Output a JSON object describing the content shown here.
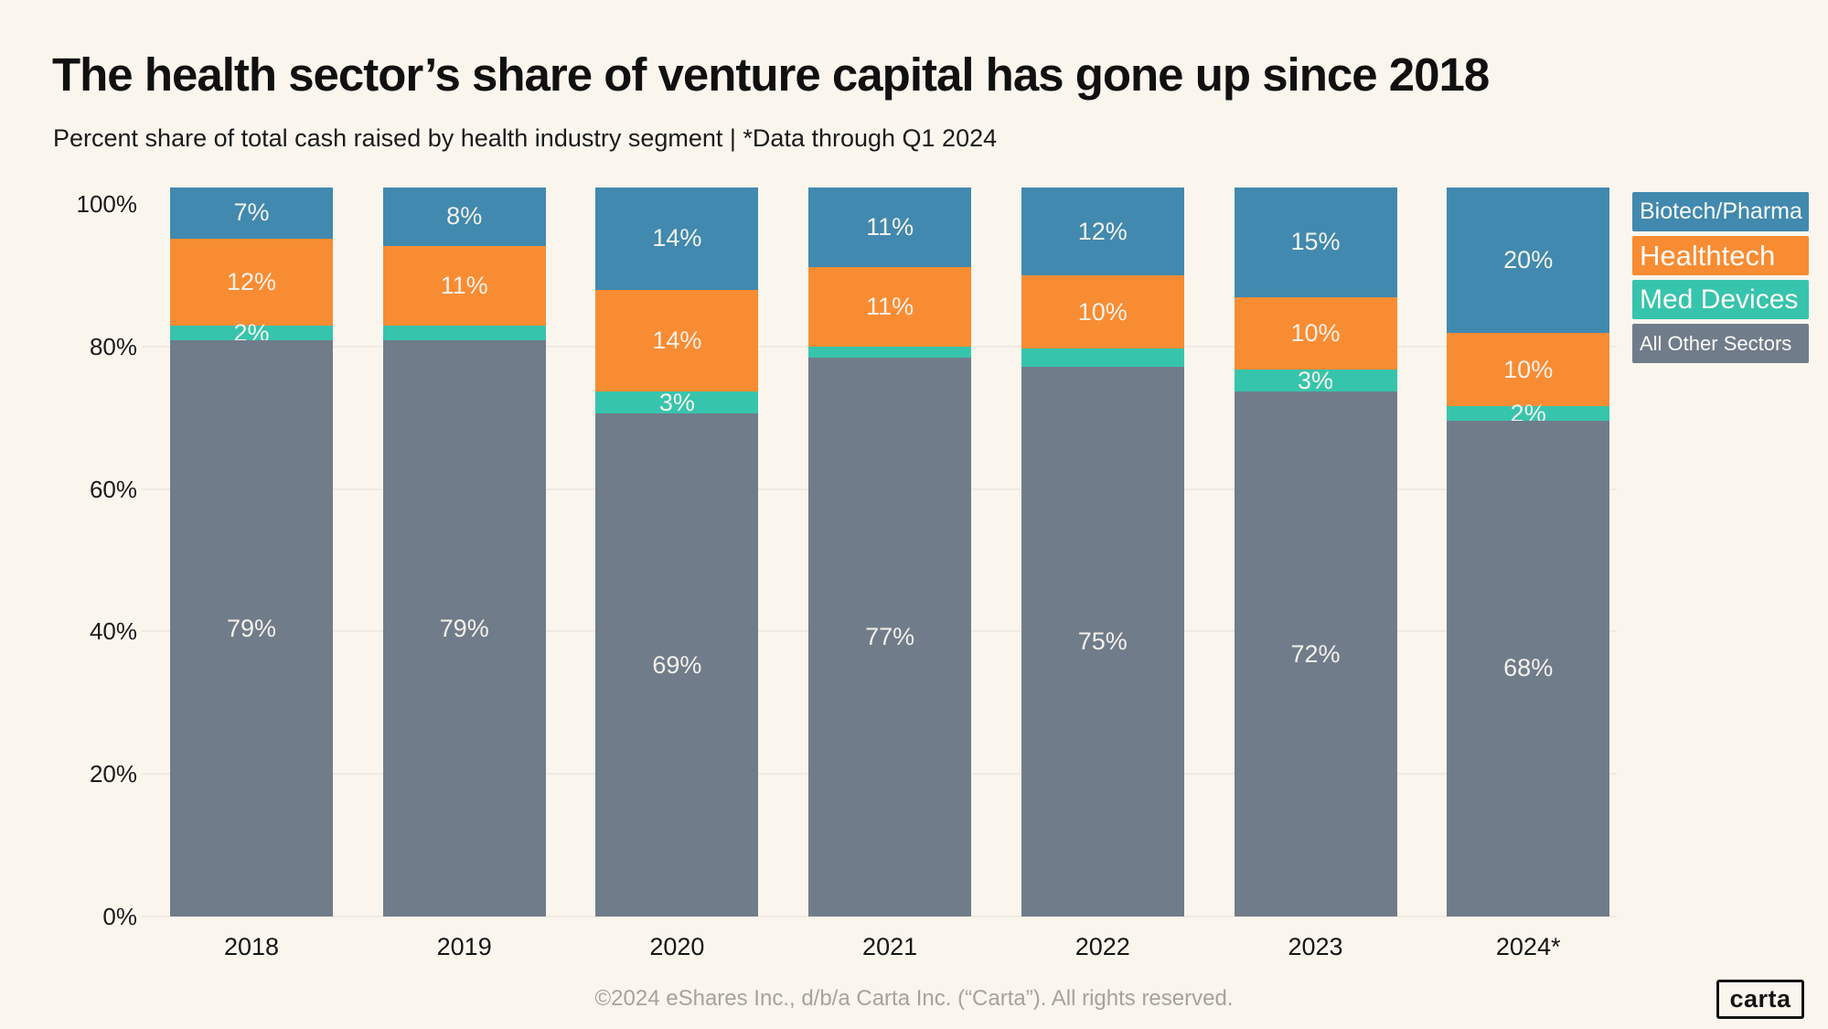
{
  "title": "The health sector’s share of venture capital has gone up since 2018",
  "subtitle": "Percent share of total cash raised by health industry segment | *Data through Q1 2024",
  "footer": "©2024 eShares Inc., d/b/a Carta Inc. (“Carta”). All rights reserved.",
  "logo_text": "carta",
  "colors": {
    "background": "#faf6ee",
    "biotech_pharma": "#4189ae",
    "healthtech": "#f88c33",
    "med_devices": "#37c4ac",
    "all_other_sectors": "#707c8a",
    "bar_label": "#f4f1ea",
    "axis_text": "#1a1a1a",
    "footer_text": "#a7a39b"
  },
  "y_axis": {
    "ticks": [
      {
        "value": 100,
        "label": "100%"
      },
      {
        "value": 80,
        "label": "80%"
      },
      {
        "value": 60,
        "label": "60%"
      },
      {
        "value": 40,
        "label": "40%"
      },
      {
        "value": 20,
        "label": "20%"
      },
      {
        "value": 0,
        "label": "0%"
      }
    ]
  },
  "chart_data": {
    "type": "bar",
    "stacked": true,
    "normalized_to_100": true,
    "grid": "horizontal, very faint, 20% intervals",
    "legend_position": "right",
    "title": "The health sector’s share of venture capital has gone up since 2018",
    "xlabel": "",
    "ylabel": "Percent share of total cash raised",
    "ylim": [
      0,
      100
    ],
    "categories": [
      "2018",
      "2019",
      "2020",
      "2021",
      "2022",
      "2023",
      "2024*"
    ],
    "series": [
      {
        "name": "Biotech/Pharma",
        "color": "#4189ae",
        "values": [
          7,
          8,
          14,
          11,
          12,
          15,
          20
        ],
        "labels": [
          "7%",
          "8%",
          "14%",
          "11%",
          "12%",
          "15%",
          "20%"
        ]
      },
      {
        "name": "Healthtech",
        "color": "#f88c33",
        "values": [
          12,
          11,
          14,
          11,
          10,
          10,
          10
        ],
        "labels": [
          "12%",
          "11%",
          "14%",
          "11%",
          "10%",
          "10%",
          "10%"
        ]
      },
      {
        "name": "Med Devices",
        "color": "#37c4ac",
        "values": [
          2,
          2,
          3,
          1.5,
          2.5,
          3,
          2
        ],
        "labels": [
          "2%",
          null,
          "3%",
          null,
          null,
          "3%",
          "2%"
        ]
      },
      {
        "name": "All Other Sectors",
        "color": "#707c8a",
        "values": [
          79,
          79,
          69,
          77,
          75,
          72,
          68
        ],
        "labels": [
          "79%",
          "79%",
          "69%",
          "77%",
          "75%",
          "72%",
          "68%"
        ]
      }
    ]
  }
}
